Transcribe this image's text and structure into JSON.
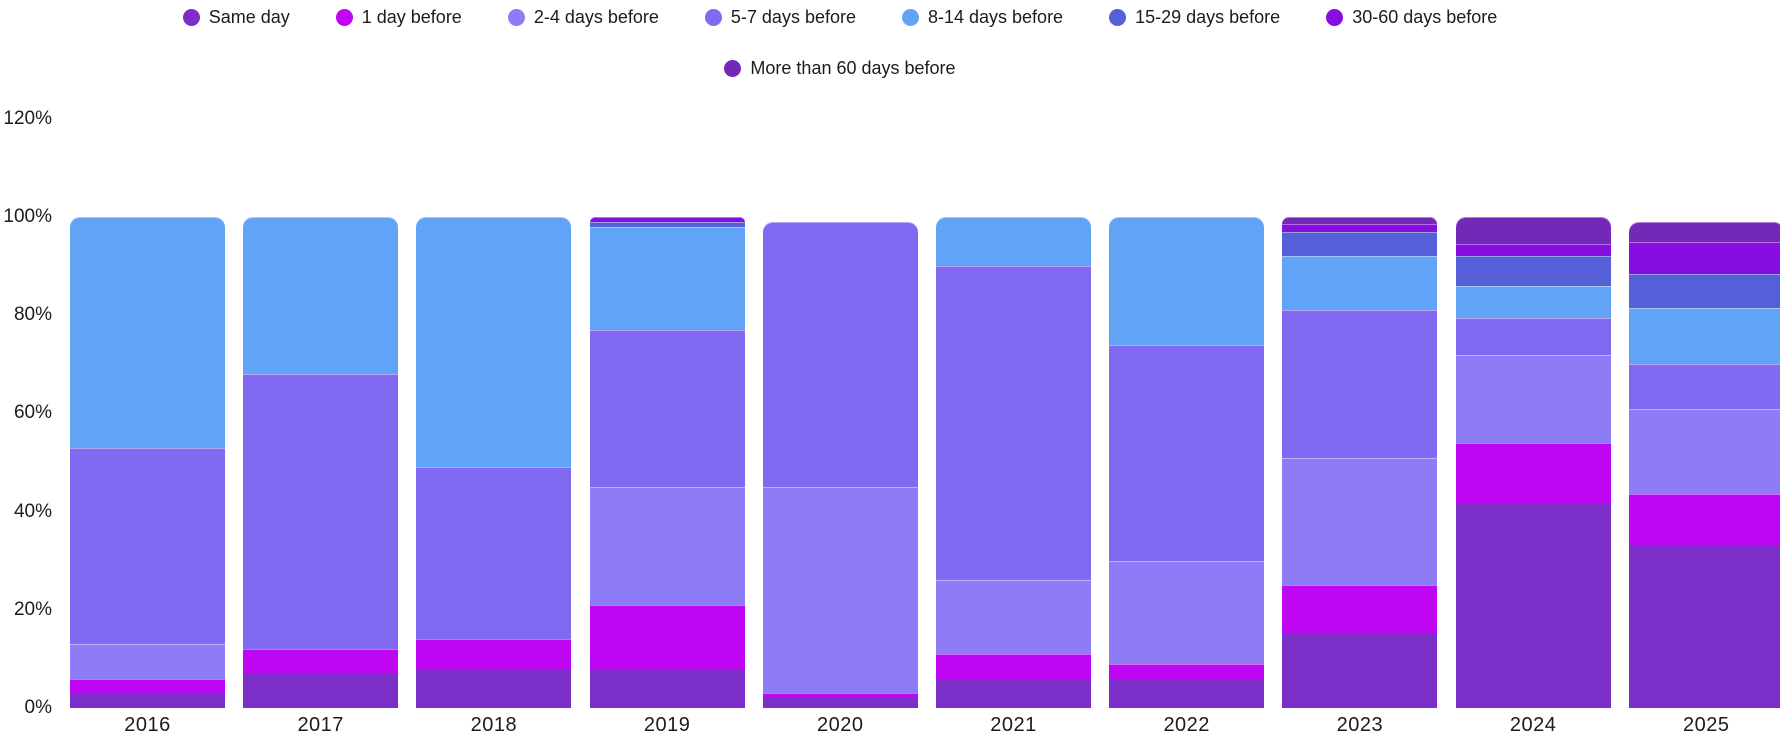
{
  "chart_data": {
    "type": "bar",
    "stacked": true,
    "percent": true,
    "legend_position": "top",
    "grid": false,
    "ylim": [
      0,
      120
    ],
    "yticks": [
      {
        "label": "120%",
        "value": 120
      },
      {
        "label": "100%",
        "value": 100
      },
      {
        "label": "80%",
        "value": 80
      },
      {
        "label": "60%",
        "value": 60
      },
      {
        "label": "40%",
        "value": 40
      },
      {
        "label": "20%",
        "value": 20
      },
      {
        "label": "0%",
        "value": 0
      }
    ],
    "categories": [
      "2016",
      "2017",
      "2018",
      "2019",
      "2020",
      "2021",
      "2022",
      "2023",
      "2024",
      "2025"
    ],
    "series": [
      {
        "name": "Same day",
        "color": "#7B2EC8",
        "legend_row": 1,
        "values": [
          3,
          7,
          8,
          8,
          2,
          6,
          6,
          15,
          41.5,
          33
        ]
      },
      {
        "name": "1 day before",
        "color": "#BE06F2",
        "legend_row": 1,
        "values": [
          3,
          5,
          6,
          13,
          1,
          5,
          3,
          10,
          12.5,
          10.5
        ]
      },
      {
        "name": "2-4 days before",
        "color": "#8E7CF6",
        "legend_row": 1,
        "values": [
          7,
          0,
          0,
          24,
          42,
          15,
          21,
          26,
          18,
          17.5
        ]
      },
      {
        "name": "5-7 days before",
        "color": "#8269F2",
        "legend_row": 1,
        "values": [
          40,
          56,
          35,
          32,
          54,
          64,
          44,
          30,
          7.5,
          9
        ]
      },
      {
        "name": "8-14 days before",
        "color": "#61A3F6",
        "legend_row": 1,
        "values": [
          47,
          32,
          51,
          21,
          0,
          10,
          26,
          11,
          6.5,
          11.5
        ]
      },
      {
        "name": "15-29 days before",
        "color": "#5560D8",
        "legend_row": 1,
        "values": [
          0,
          0,
          0,
          1,
          0,
          0,
          0,
          5,
          6,
          7
        ]
      },
      {
        "name": "30-60 days before",
        "color": "#860EE0",
        "legend_row": 1,
        "values": [
          0,
          0,
          0,
          1,
          0,
          0,
          0,
          1.5,
          2.5,
          6.5
        ]
      },
      {
        "name": "More than 60 days before",
        "color": "#7428B8",
        "legend_row": 2,
        "values": [
          0,
          0,
          0,
          0,
          0,
          0,
          0,
          1.5,
          5.5,
          4
        ]
      }
    ]
  },
  "layout_note": "100% stacked bar chart of booking lead time share by year"
}
